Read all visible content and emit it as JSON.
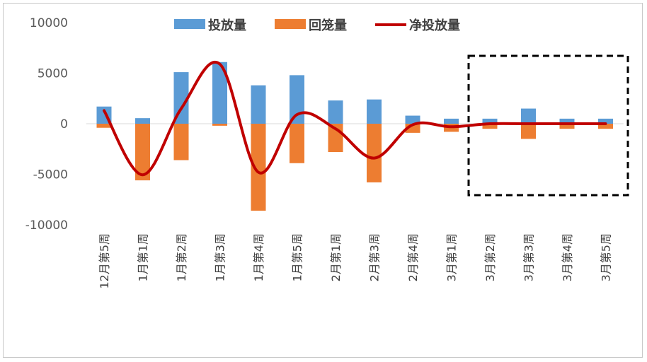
{
  "chart_data": {
    "type": "bar",
    "title": "",
    "xlabel": "",
    "ylabel": "",
    "ylim": [
      -10000,
      10000
    ],
    "yticks": [
      10000,
      5000,
      0,
      -5000,
      -10000
    ],
    "categories": [
      "12月第5周",
      "1月第1周",
      "1月第2周",
      "1月第3周",
      "1月第4周",
      "1月第5周",
      "2月第1周",
      "2月第3周",
      "2月第4周",
      "3月第1周",
      "3月第2周",
      "3月第3周",
      "3月第4周",
      "3月第5周"
    ],
    "series": [
      {
        "name": "投放量",
        "kind": "bar",
        "color": "#5B9BD5",
        "values": [
          1700,
          550,
          5100,
          6100,
          3800,
          4800,
          2300,
          2400,
          800,
          500,
          500,
          1500,
          500,
          500
        ]
      },
      {
        "name": "回笼量",
        "kind": "bar",
        "color": "#ED7D31",
        "values": [
          -400,
          -5600,
          -3600,
          -200,
          -8600,
          -3900,
          -2800,
          -5800,
          -900,
          -800,
          -500,
          -1500,
          -500,
          -500
        ]
      },
      {
        "name": "净投放量",
        "kind": "line",
        "color": "#C00000",
        "values": [
          1300,
          -5050,
          1500,
          5900,
          -4800,
          900,
          -500,
          -3400,
          -100,
          -300,
          0,
          0,
          0,
          0
        ]
      }
    ],
    "legend_position": "top",
    "grid": false,
    "annotation": "dashed box highlighting 3月第2周 to 3月第5周"
  }
}
